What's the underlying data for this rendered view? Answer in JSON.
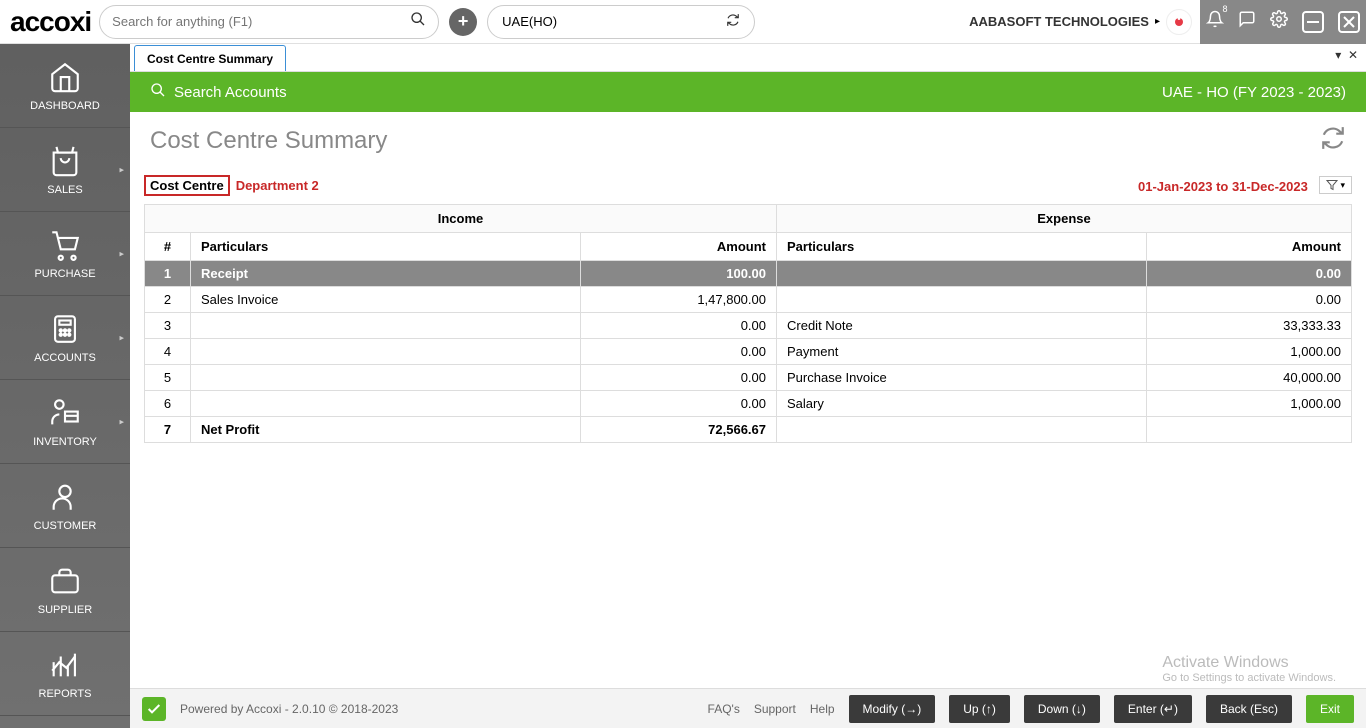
{
  "topbar": {
    "logo": "accoxi",
    "search_placeholder": "Search for anything (F1)",
    "branch": "UAE(HO)",
    "company": "AABASOFT TECHNOLOGIES",
    "notification_count": "8"
  },
  "sidebar": {
    "items": [
      {
        "label": "DASHBOARD",
        "arrow": false
      },
      {
        "label": "SALES",
        "arrow": true
      },
      {
        "label": "PURCHASE",
        "arrow": true
      },
      {
        "label": "ACCOUNTS",
        "arrow": true
      },
      {
        "label": "INVENTORY",
        "arrow": true
      },
      {
        "label": "CUSTOMER",
        "arrow": false
      },
      {
        "label": "SUPPLIER",
        "arrow": false
      },
      {
        "label": "REPORTS",
        "arrow": false
      }
    ]
  },
  "tab": {
    "label": "Cost Centre Summary"
  },
  "greenbar": {
    "search": "Search Accounts",
    "context": "UAE - HO (FY 2023 - 2023)"
  },
  "page": {
    "title": "Cost Centre Summary"
  },
  "filter": {
    "badge": "Cost Centre",
    "dept": "Department 2",
    "date_range": "01-Jan-2023 to 31-Dec-2023"
  },
  "table": {
    "income_header": "Income",
    "expense_header": "Expense",
    "cols": {
      "seq": "#",
      "part": "Particulars",
      "amt": "Amount",
      "part2": "Particulars",
      "amt2": "Amount"
    },
    "rows": [
      {
        "seq": "1",
        "ipart": "Receipt",
        "iamt": "100.00",
        "epart": "",
        "eamt": "0.00",
        "highlight": true
      },
      {
        "seq": "2",
        "ipart": "Sales Invoice",
        "iamt": "1,47,800.00",
        "epart": "",
        "eamt": "0.00"
      },
      {
        "seq": "3",
        "ipart": "",
        "iamt": "0.00",
        "epart": "Credit Note",
        "eamt": "33,333.33"
      },
      {
        "seq": "4",
        "ipart": "",
        "iamt": "0.00",
        "epart": "Payment",
        "eamt": "1,000.00"
      },
      {
        "seq": "5",
        "ipart": "",
        "iamt": "0.00",
        "epart": "Purchase Invoice",
        "eamt": "40,000.00"
      },
      {
        "seq": "6",
        "ipart": "",
        "iamt": "0.00",
        "epart": "Salary",
        "eamt": "1,000.00"
      },
      {
        "seq": "7",
        "ipart": "Net Profit",
        "iamt": "72,566.67",
        "epart": "",
        "eamt": "",
        "bold": true
      }
    ]
  },
  "footer": {
    "powered": "Powered by Accoxi - 2.0.10 © 2018-2023",
    "links": {
      "faq": "FAQ's",
      "support": "Support",
      "help": "Help"
    },
    "buttons": {
      "modify": "Modify (→)",
      "up": "Up (↑)",
      "down": "Down (↓)",
      "enter": "Enter (↵)",
      "back": "Back (Esc)",
      "exit": "Exit"
    }
  },
  "watermark": {
    "l1": "Activate Windows",
    "l2": "Go to Settings to activate Windows."
  }
}
